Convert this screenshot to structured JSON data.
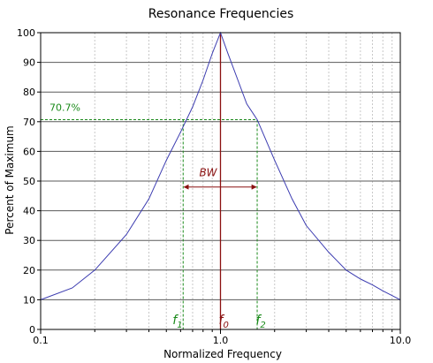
{
  "chart_data": {
    "type": "line",
    "title": "Resonance Frequencies",
    "xlabel": "Normalized Frequency",
    "ylabel": "Percent of Maximum",
    "x_scale": "log",
    "xlim": [
      0.1,
      10.0
    ],
    "ylim": [
      0,
      100
    ],
    "x_tick_labels": [
      "0.1",
      "1.0",
      "10.0"
    ],
    "x_tick_values": [
      0.1,
      1.0,
      10.0
    ],
    "y_ticks": [
      0,
      10,
      20,
      30,
      40,
      50,
      60,
      70,
      80,
      90,
      100
    ],
    "grid": true,
    "series": [
      {
        "color": "#3b3bb0",
        "x": [
          0.1,
          0.15,
          0.2,
          0.3,
          0.4,
          0.5,
          0.6,
          0.7,
          0.8,
          0.9,
          1.0,
          1.1,
          1.25,
          1.4,
          1.6,
          2.0,
          2.5,
          3.0,
          4.0,
          5.0,
          6.0,
          7.0,
          8.0,
          10.0
        ],
        "y": [
          10.0,
          14.0,
          20.0,
          32.0,
          44.0,
          57.0,
          66.5,
          75.0,
          84.0,
          93.0,
          100.0,
          93.0,
          84.0,
          76.0,
          70.7,
          57.0,
          44.0,
          35.0,
          26.0,
          20.0,
          17.0,
          15.0,
          13.0,
          10.0
        ]
      }
    ],
    "annotations": {
      "level_label": "70.7%",
      "level_value": 70.7,
      "bw_label": "BW",
      "f1_base": "f",
      "f1_sub": "1",
      "f1_x": 0.62,
      "f0_base": "f",
      "f0_sub": "0",
      "f0_x": 1.0,
      "f2_base": "f",
      "f2_sub": "2",
      "f2_x": 1.6,
      "bw_y": 48
    },
    "colors": {
      "curve": "#3b3bb0",
      "guide_green": "#1a8a1a",
      "guide_red": "#8a1010"
    }
  }
}
